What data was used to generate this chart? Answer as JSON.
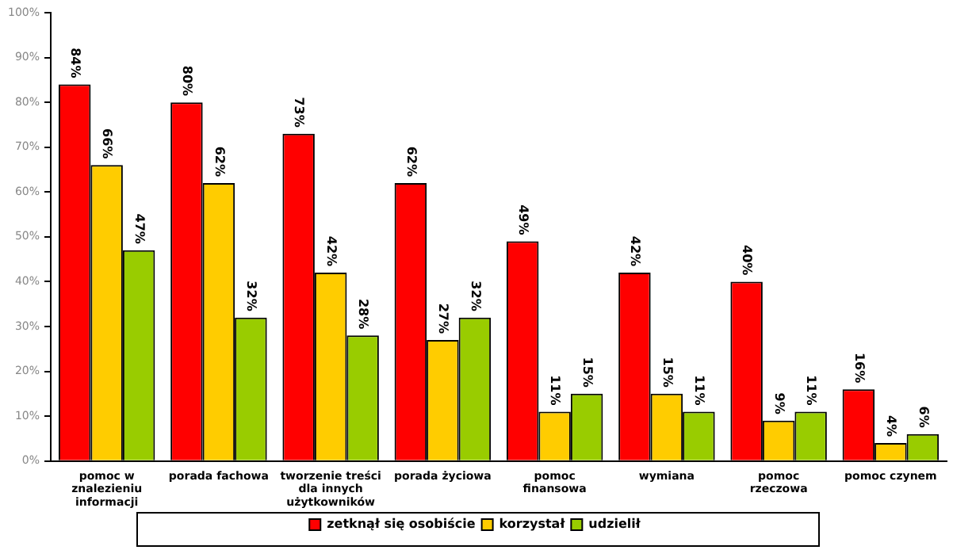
{
  "chart_data": {
    "type": "bar",
    "categories": [
      "pomoc w\nznalezieniu\ninformacji",
      "porada fachowa",
      "tworzenie treści\ndla innych\nużytkowników",
      "porada życiowa",
      "pomoc\nfinansowa",
      "wymiana",
      "pomoc\nrzeczowa",
      "pomoc czynem"
    ],
    "series": [
      {
        "name": "zetknął się osobiście",
        "color": "#ff0000",
        "values": [
          84,
          80,
          73,
          62,
          49,
          42,
          40,
          16
        ],
        "value_labels": [
          "84%",
          "80%",
          "73%",
          "62%",
          "49%",
          "42%",
          "40%",
          "16%"
        ]
      },
      {
        "name": "korzystał",
        "color": "#ffcc00",
        "values": [
          66,
          62,
          42,
          27,
          11,
          15,
          9,
          4
        ],
        "value_labels": [
          "66%",
          "62%",
          "42%",
          "27%",
          "11%",
          "15%",
          "9%",
          "4%"
        ]
      },
      {
        "name": "udzielił",
        "color": "#99cc00",
        "values": [
          47,
          32,
          28,
          32,
          15,
          11,
          11,
          6
        ],
        "value_labels": [
          "47%",
          "32%",
          "28%",
          "32%",
          "15%",
          "11%",
          "11%",
          "6%"
        ]
      }
    ],
    "ylim": [
      0,
      100
    ],
    "yticks": [
      {
        "value": 0,
        "label": "0%"
      },
      {
        "value": 10,
        "label": "10%"
      },
      {
        "value": 20,
        "label": "20%"
      },
      {
        "value": 30,
        "label": "30%"
      },
      {
        "value": 40,
        "label": "40%"
      },
      {
        "value": 50,
        "label": "50%"
      },
      {
        "value": 60,
        "label": "60%"
      },
      {
        "value": 70,
        "label": "70%"
      },
      {
        "value": 80,
        "label": "80%"
      },
      {
        "value": 90,
        "label": "90%"
      },
      {
        "value": 100,
        "label": "100%"
      }
    ],
    "grid": false,
    "legend": "bottom"
  }
}
